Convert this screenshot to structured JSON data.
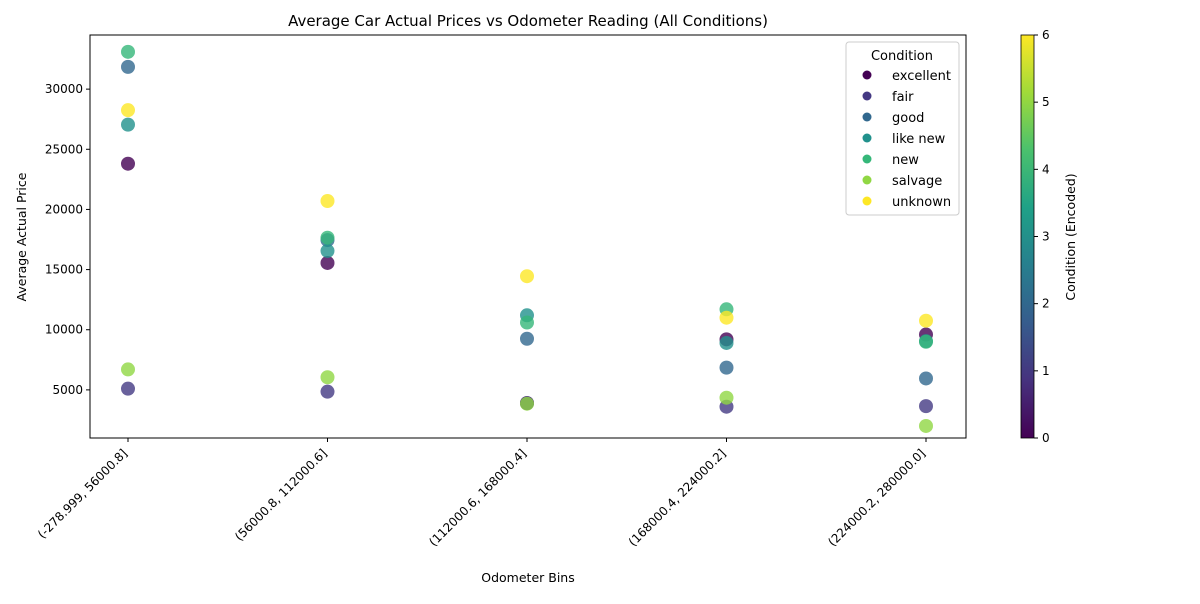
{
  "chart_data": {
    "type": "scatter",
    "title": "Average Car Actual Prices vs Odometer Reading (All Conditions)",
    "xlabel": "Odometer Bins",
    "ylabel": "Average Actual Price",
    "categories": [
      "(-278.999, 56000.8]",
      "(56000.8, 112000.6]",
      "(112000.6, 168000.4]",
      "(168000.4, 224000.2]",
      "(224000.2, 280000.0]"
    ],
    "ylim": [
      1000,
      34500
    ],
    "yticks": [
      5000,
      10000,
      15000,
      20000,
      25000,
      30000
    ],
    "grid": false,
    "legend": {
      "title": "Condition",
      "placement": "top-right"
    },
    "colorbar": {
      "label": "Condition (Encoded)",
      "range": [
        0,
        6
      ],
      "ticks": [
        0,
        1,
        2,
        3,
        4,
        5,
        6
      ],
      "colormap": [
        "#440154",
        "#46327e",
        "#365c8d",
        "#277f8e",
        "#1fa187",
        "#4ac16d",
        "#a0da39",
        "#fde725"
      ]
    },
    "series": [
      {
        "name": "excellent",
        "code": 0,
        "color": "#440154",
        "values": [
          23800,
          15550,
          3900,
          9200,
          9600
        ]
      },
      {
        "name": "fair",
        "code": 1,
        "color": "#443983",
        "values": [
          5100,
          4850,
          3900,
          3600,
          3650
        ]
      },
      {
        "name": "good",
        "code": 2,
        "color": "#31688e",
        "values": [
          31850,
          17450,
          9250,
          6850,
          5950
        ]
      },
      {
        "name": "like new",
        "code": 3,
        "color": "#21918c",
        "values": [
          27050,
          16550,
          11200,
          8900,
          9050
        ]
      },
      {
        "name": "new",
        "code": 4,
        "color": "#35b779",
        "values": [
          33100,
          17650,
          10600,
          11700,
          9000
        ]
      },
      {
        "name": "salvage",
        "code": 5,
        "color": "#90d743",
        "values": [
          6700,
          6050,
          3850,
          4350,
          2000
        ]
      },
      {
        "name": "unknown",
        "code": 6,
        "color": "#fde725",
        "values": [
          28250,
          20700,
          14450,
          11000,
          10750
        ]
      }
    ]
  }
}
